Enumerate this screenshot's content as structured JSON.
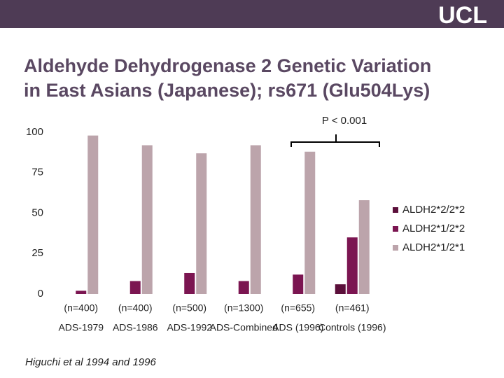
{
  "header": {
    "logo": "UCL"
  },
  "chart_data": {
    "type": "bar",
    "title": "Aldehyde Dehydrogenase 2 Genetic Variation",
    "subtitle": "in East Asians (Japanese); rs671 (Glu504Lys)",
    "categories": [
      "ADS-1979",
      "ADS-1986",
      "ADS-1992",
      "ADS-Combined",
      "ADS (1996)",
      "Controls (1996)"
    ],
    "sample_sizes": [
      "(n=400)",
      "(n=400)",
      "(n=500)",
      "(n=1300)",
      "(n=655)",
      "(n=461)"
    ],
    "series": [
      {
        "name": "ALDH2*2/2*2",
        "color": "#5b0f3a",
        "values": [
          0,
          0,
          0,
          0,
          0,
          6
        ]
      },
      {
        "name": "ALDH2*1/2*2",
        "color": "#7b1551",
        "values": [
          2,
          8,
          13,
          8,
          12,
          35
        ]
      },
      {
        "name": "ALDH2*1/2*1",
        "color": "#bca4ab",
        "values": [
          98,
          92,
          87,
          92,
          88,
          58
        ]
      }
    ],
    "ylim": [
      0,
      100
    ],
    "yticks": [
      0,
      25,
      50,
      75,
      100
    ],
    "grid": false,
    "legend": "right",
    "annotation": "P < 0.001",
    "footnote": "Higuchi et al 1994 and 1996"
  }
}
